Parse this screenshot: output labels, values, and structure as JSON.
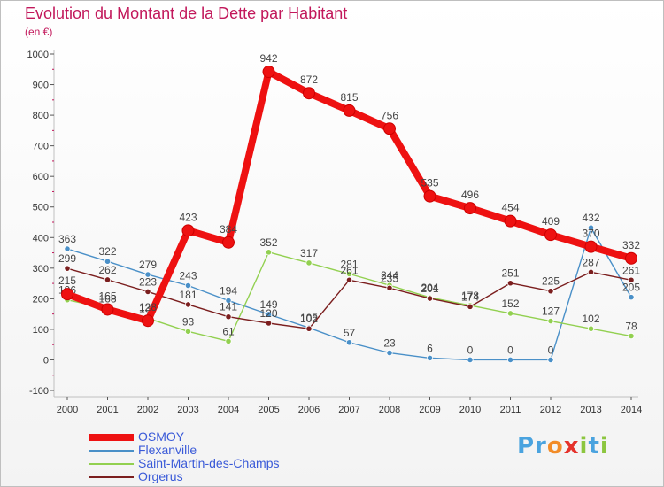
{
  "title": "Evolution du Montant de la Dette par Habitant",
  "subtitle": "(en €)",
  "logo": {
    "p": "Pr",
    "o": "o",
    "x": "x",
    "i": "i",
    "t": "t",
    "i2": "i"
  },
  "chart_data": {
    "type": "line",
    "title": "Evolution du Montant de la Dette par Habitant",
    "ylabel": "(en €)",
    "xlabel": "",
    "x": [
      "2000",
      "2001",
      "2002",
      "2003",
      "2004",
      "2005",
      "2006",
      "2007",
      "2008",
      "2009",
      "2010",
      "2011",
      "2012",
      "2013",
      "2014"
    ],
    "ylim": [
      -100,
      1000
    ],
    "yticks": [
      -100,
      0,
      100,
      200,
      300,
      400,
      500,
      600,
      700,
      800,
      900,
      1000
    ],
    "grid": false,
    "legend": "bottom-left",
    "series": [
      {
        "name": "OSMOY",
        "color": "#ee1111",
        "values": [
          215,
          165,
          128,
          423,
          384,
          942,
          872,
          815,
          756,
          535,
          496,
          454,
          409,
          370,
          332
        ]
      },
      {
        "name": "Flexanville",
        "color": "#4a90c8",
        "values": [
          363,
          322,
          279,
          243,
          194,
          149,
          105,
          57,
          23,
          6,
          0,
          0,
          0,
          432,
          205
        ]
      },
      {
        "name": "Saint-Martin-des-Champs",
        "color": "#92d050",
        "values": [
          196,
          168,
          136,
          93,
          61,
          352,
          317,
          281,
          244,
          204,
          178,
          152,
          127,
          102,
          78
        ]
      },
      {
        "name": "Orgerus",
        "color": "#7b1e1e",
        "values": [
          299,
          262,
          223,
          181,
          141,
          120,
          102,
          261,
          235,
          201,
          174,
          251,
          225,
          287,
          261
        ]
      }
    ]
  }
}
